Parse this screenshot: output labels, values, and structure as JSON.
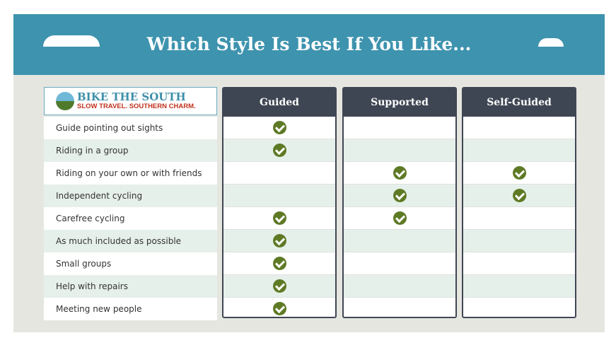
{
  "title": "Which Style Is Best If You Like...",
  "logo": {
    "name": "BIKE THE SOUTH",
    "tagline": "SLOW TRAVEL. SOUTHERN CHARM."
  },
  "colors": {
    "banner": "#3E93AE",
    "header": "#3F4653",
    "check": "#5E7A25",
    "row_alt": "#E6F0EA"
  },
  "columns": [
    "Guided",
    "Supported",
    "Self-Guided"
  ],
  "rows": [
    {
      "label": "Guide pointing out sights",
      "checks": [
        true,
        false,
        false
      ]
    },
    {
      "label": "Riding in a group",
      "checks": [
        true,
        false,
        false
      ]
    },
    {
      "label": "Riding on your own or with friends",
      "checks": [
        false,
        true,
        true
      ]
    },
    {
      "label": "Independent cycling",
      "checks": [
        false,
        true,
        true
      ]
    },
    {
      "label": "Carefree cycling",
      "checks": [
        true,
        true,
        false
      ]
    },
    {
      "label": "As much included as possible",
      "checks": [
        true,
        false,
        false
      ]
    },
    {
      "label": "Small groups",
      "checks": [
        true,
        false,
        false
      ]
    },
    {
      "label": "Help with repairs",
      "checks": [
        true,
        false,
        false
      ]
    },
    {
      "label": "Meeting new people",
      "checks": [
        true,
        false,
        false
      ]
    }
  ]
}
